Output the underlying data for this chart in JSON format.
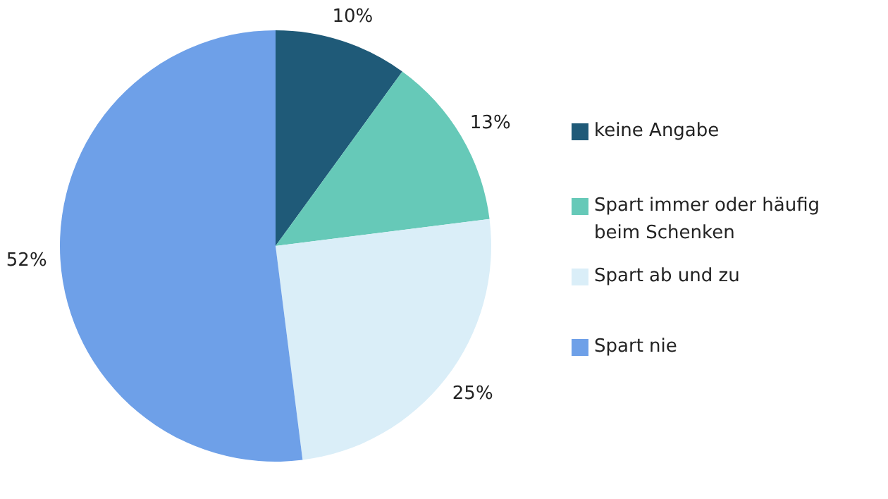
{
  "chart_data": {
    "type": "pie",
    "categories": [
      "keine Angabe",
      "Spart immer oder häufig\nbeim Schenken",
      "Spart ab und zu",
      "Spart nie"
    ],
    "values": [
      10,
      13,
      25,
      52
    ],
    "colors": [
      "#1f5a78",
      "#66c9b8",
      "#daeef8",
      "#6ea0e8"
    ],
    "value_labels": [
      "10%",
      "13%",
      "25%",
      "52%"
    ],
    "legend": "right"
  }
}
